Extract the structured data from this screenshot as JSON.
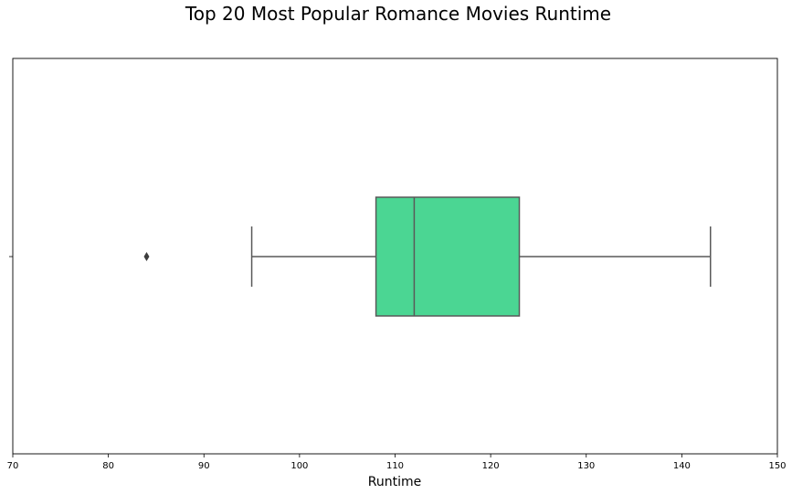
{
  "chart_data": {
    "type": "box",
    "title": "Top 20 Most Popular Romance Movies Runtime",
    "xlabel": "Runtime",
    "ylabel": "",
    "xlim": [
      70,
      150
    ],
    "xticks": [
      70,
      80,
      90,
      100,
      110,
      120,
      130,
      140,
      150
    ],
    "box": {
      "whisker_low": 95,
      "q1": 108,
      "median": 112,
      "q3": 123,
      "whisker_high": 143,
      "outliers": [
        84
      ]
    },
    "grid": false,
    "legend": "none",
    "colors": {
      "box_fill": "#4BD693",
      "line": "#595959",
      "outlier": "#3d3d3d",
      "frame": "#000000"
    }
  }
}
